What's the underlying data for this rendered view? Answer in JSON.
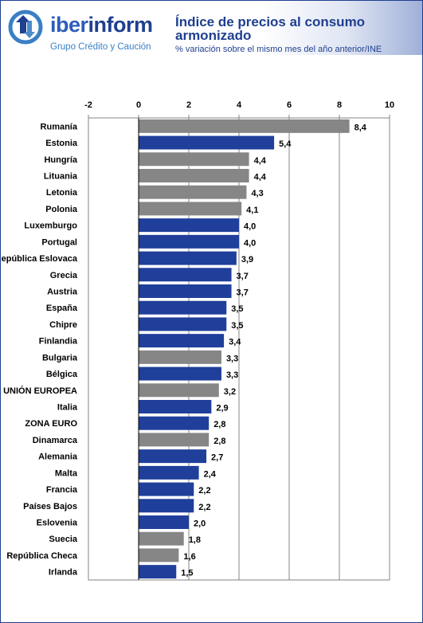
{
  "header": {
    "brand_part1": "iber",
    "brand_part2": "inform",
    "tagline": "Grupo Crédito y Caución",
    "title": "Índice de precios al consumo armonizado",
    "subtitle": "% variación sobre el mismo mes del año anterior/INE"
  },
  "colors": {
    "euro_area": "#1f3f9a",
    "non_euro": "#868686",
    "brand_dark": "#1f3f8f",
    "brand_light": "#3a7fc5"
  },
  "chart_data": {
    "type": "bar",
    "orientation": "horizontal",
    "title": "Índice de precios al consumo armonizado",
    "subtitle": "% variación sobre el mismo mes del año anterior/INE",
    "xlabel": "",
    "ylabel": "",
    "xlim": [
      -2,
      10
    ],
    "x_ticks": [
      -2,
      0,
      2,
      4,
      6,
      8,
      10
    ],
    "x_axis_position": "top",
    "grid": true,
    "categories": [
      "Rumanía",
      "Estonia",
      "Hungría",
      "Lituania",
      "Letonia",
      "Polonia",
      "Luxemburgo",
      "Portugal",
      "República Eslovaca",
      "Grecia",
      "Austria",
      "España",
      "Chipre",
      "Finlandia",
      "Bulgaria",
      "Bélgica",
      "UNIÓN EUROPEA",
      "Italia",
      "ZONA EURO",
      "Dinamarca",
      "Alemania",
      "Malta",
      "Francia",
      "Países Bajos",
      "Eslovenia",
      "Suecia",
      "República Checa",
      "Irlanda"
    ],
    "values": [
      8.4,
      5.4,
      4.4,
      4.4,
      4.3,
      4.1,
      4.0,
      4.0,
      3.9,
      3.7,
      3.7,
      3.5,
      3.5,
      3.4,
      3.3,
      3.3,
      3.2,
      2.9,
      2.8,
      2.8,
      2.7,
      2.4,
      2.2,
      2.2,
      2.0,
      1.8,
      1.6,
      1.5
    ],
    "value_labels": [
      "8,4",
      "5,4",
      "4,4",
      "4,4",
      "4,3",
      "4,1",
      "4,0",
      "4,0",
      "3,9",
      "3,7",
      "3,7",
      "3,5",
      "3,5",
      "3,4",
      "3,3",
      "3,3",
      "3,2",
      "2,9",
      "2,8",
      "2,8",
      "2,7",
      "2,4",
      "2,2",
      "2,2",
      "2,0",
      "1,8",
      "1,6",
      "1,5"
    ],
    "bar_group": [
      "non_euro",
      "euro_area",
      "non_euro",
      "non_euro",
      "non_euro",
      "non_euro",
      "euro_area",
      "euro_area",
      "euro_area",
      "euro_area",
      "euro_area",
      "euro_area",
      "euro_area",
      "euro_area",
      "non_euro",
      "euro_area",
      "non_euro",
      "euro_area",
      "euro_area",
      "non_euro",
      "euro_area",
      "euro_area",
      "euro_area",
      "euro_area",
      "euro_area",
      "non_euro",
      "non_euro",
      "euro_area"
    ]
  }
}
